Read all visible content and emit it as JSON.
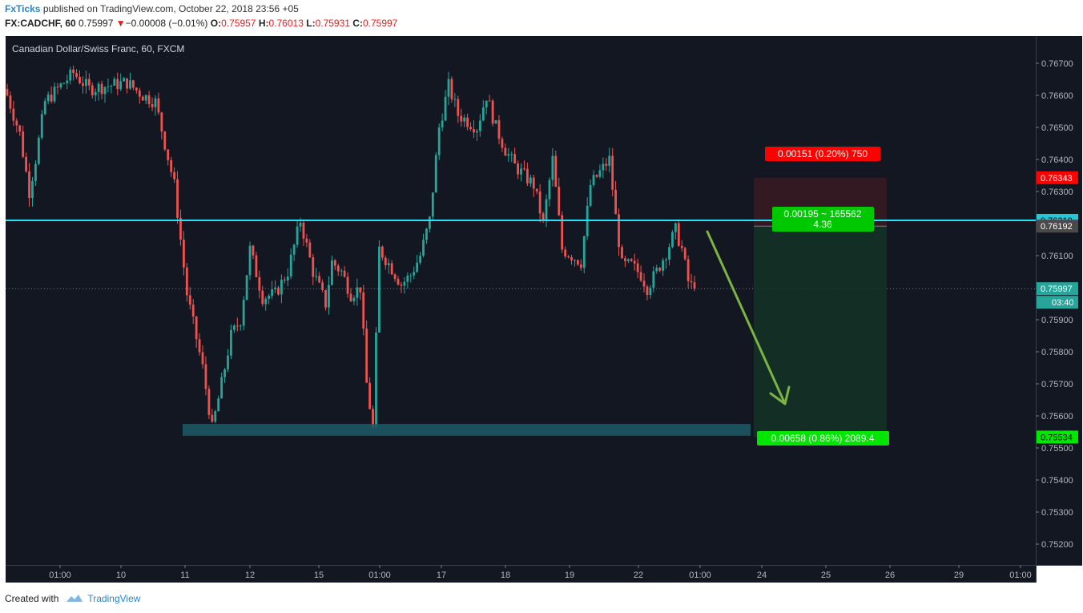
{
  "header": {
    "author": "FxTicks",
    "published_text": " published on TradingView.com, October 22, 2018 23:56 +05",
    "symbol": "FX:CADCHF, 60",
    "last": "0.75997",
    "down_arrow": "▼",
    "change": "−0.00008 (−0.01%)",
    "o_label": "O:",
    "o_value": "0.75957",
    "h_label": "H:",
    "h_value": "0.76013",
    "l_label": "L:",
    "l_value": "0.75931",
    "c_label": "C:",
    "c_value": "0.75997"
  },
  "footer": {
    "created_with": "Created with",
    "brand": "TradingView"
  },
  "colors": {
    "background": "#131722",
    "up": "#26a69a",
    "down": "#ef5350",
    "level_line": "#26e5f2",
    "stop_zone": "#3a1a22",
    "target_zone": "#143226",
    "support_zone": "#1c5c66",
    "arrow": "#7cb342",
    "label_red": "#ff0000",
    "label_green": "#00e600"
  },
  "chart_data": {
    "type": "candlestick",
    "title": "Canadian Dollar/Swiss Franc, 60, FXCM",
    "y_ticks": [
      0.767,
      0.766,
      0.765,
      0.764,
      0.763,
      0.761,
      0.759,
      0.758,
      0.757,
      0.756,
      0.755,
      0.754,
      0.753,
      0.752
    ],
    "y_tick_labels": [
      "0.76700",
      "0.76600",
      "0.76500",
      "0.76400",
      "0.76300",
      "0.76100",
      "0.75900",
      "0.75800",
      "0.75700",
      "0.75600",
      "0.75500",
      "0.75400",
      "0.75300",
      "0.75200"
    ],
    "ylim": [
      0.75135,
      0.76785
    ],
    "x_ticks": [
      "01:00",
      "10",
      "11",
      "12",
      "15",
      "01:00",
      "17",
      "18",
      "19",
      "22",
      "01:00",
      "24",
      "25",
      "26",
      "29",
      "01:00"
    ],
    "price_path": [
      [
        0,
        0.766
      ],
      [
        4,
        0.7648
      ],
      [
        7,
        0.763
      ],
      [
        9,
        0.764
      ],
      [
        12,
        0.7658
      ],
      [
        17,
        0.7663
      ],
      [
        21,
        0.7667
      ],
      [
        26,
        0.7662
      ],
      [
        32,
        0.7663
      ],
      [
        38,
        0.7664
      ],
      [
        43,
        0.766
      ],
      [
        47,
        0.7658
      ],
      [
        53,
        0.7632
      ],
      [
        57,
        0.7598
      ],
      [
        62,
        0.7575
      ],
      [
        65,
        0.7556
      ],
      [
        68,
        0.757
      ],
      [
        71,
        0.7585
      ],
      [
        74,
        0.759
      ],
      [
        77,
        0.7612
      ],
      [
        81,
        0.7597
      ],
      [
        85,
        0.7598
      ],
      [
        89,
        0.7605
      ],
      [
        93,
        0.7621
      ],
      [
        97,
        0.7605
      ],
      [
        101,
        0.7595
      ],
      [
        103,
        0.7608
      ],
      [
        106,
        0.7605
      ],
      [
        109,
        0.7598
      ],
      [
        112,
        0.76
      ],
      [
        114,
        0.757
      ],
      [
        116,
        0.7556
      ],
      [
        118,
        0.7612
      ],
      [
        122,
        0.7606
      ],
      [
        125,
        0.7601
      ],
      [
        128,
        0.7604
      ],
      [
        131,
        0.761
      ],
      [
        134,
        0.7621
      ],
      [
        137,
        0.765
      ],
      [
        140,
        0.7663
      ],
      [
        143,
        0.7654
      ],
      [
        146,
        0.7652
      ],
      [
        149,
        0.765
      ],
      [
        152,
        0.766
      ],
      [
        155,
        0.765
      ],
      [
        158,
        0.7643
      ],
      [
        161,
        0.7638
      ],
      [
        164,
        0.7635
      ],
      [
        167,
        0.7632
      ],
      [
        170,
        0.762
      ],
      [
        173,
        0.764
      ],
      [
        176,
        0.7612
      ],
      [
        179,
        0.761
      ],
      [
        182,
        0.7608
      ],
      [
        185,
        0.7632
      ],
      [
        188,
        0.7636
      ],
      [
        191,
        0.764
      ],
      [
        193,
        0.7622
      ],
      [
        195,
        0.7607
      ],
      [
        198,
        0.7607
      ],
      [
        201,
        0.7604
      ],
      [
        203,
        0.76
      ],
      [
        206,
        0.7605
      ],
      [
        209,
        0.7611
      ],
      [
        212,
        0.7618
      ],
      [
        214,
        0.7612
      ],
      [
        216,
        0.7602
      ],
      [
        218,
        0.7599
      ]
    ],
    "current_price": 0.75997,
    "resistance_level": 0.7621,
    "entry": 0.76192,
    "stop": 0.76343,
    "target": 0.75534,
    "support_zone": [
      0.75538,
      0.75575
    ],
    "axis_labels": [
      {
        "price": 0.76343,
        "text": "0.76343",
        "kind": "stop"
      },
      {
        "price": 0.7621,
        "text": "0.76210",
        "kind": "level"
      },
      {
        "price": 0.76192,
        "text": "0.76192",
        "kind": "entry"
      },
      {
        "price": 0.75997,
        "text": "0.75997",
        "kind": "current"
      },
      {
        "price": 0.75534,
        "text": "0.75534",
        "kind": "target"
      }
    ],
    "countdown": "03:40",
    "risk_label": "0.00151 (0.20%) 750",
    "ratio_label_1": "0.00195 ~ 165562",
    "ratio_label_2": "4.36",
    "reward_label": "0.00658 (0.86%) 2089.4"
  }
}
